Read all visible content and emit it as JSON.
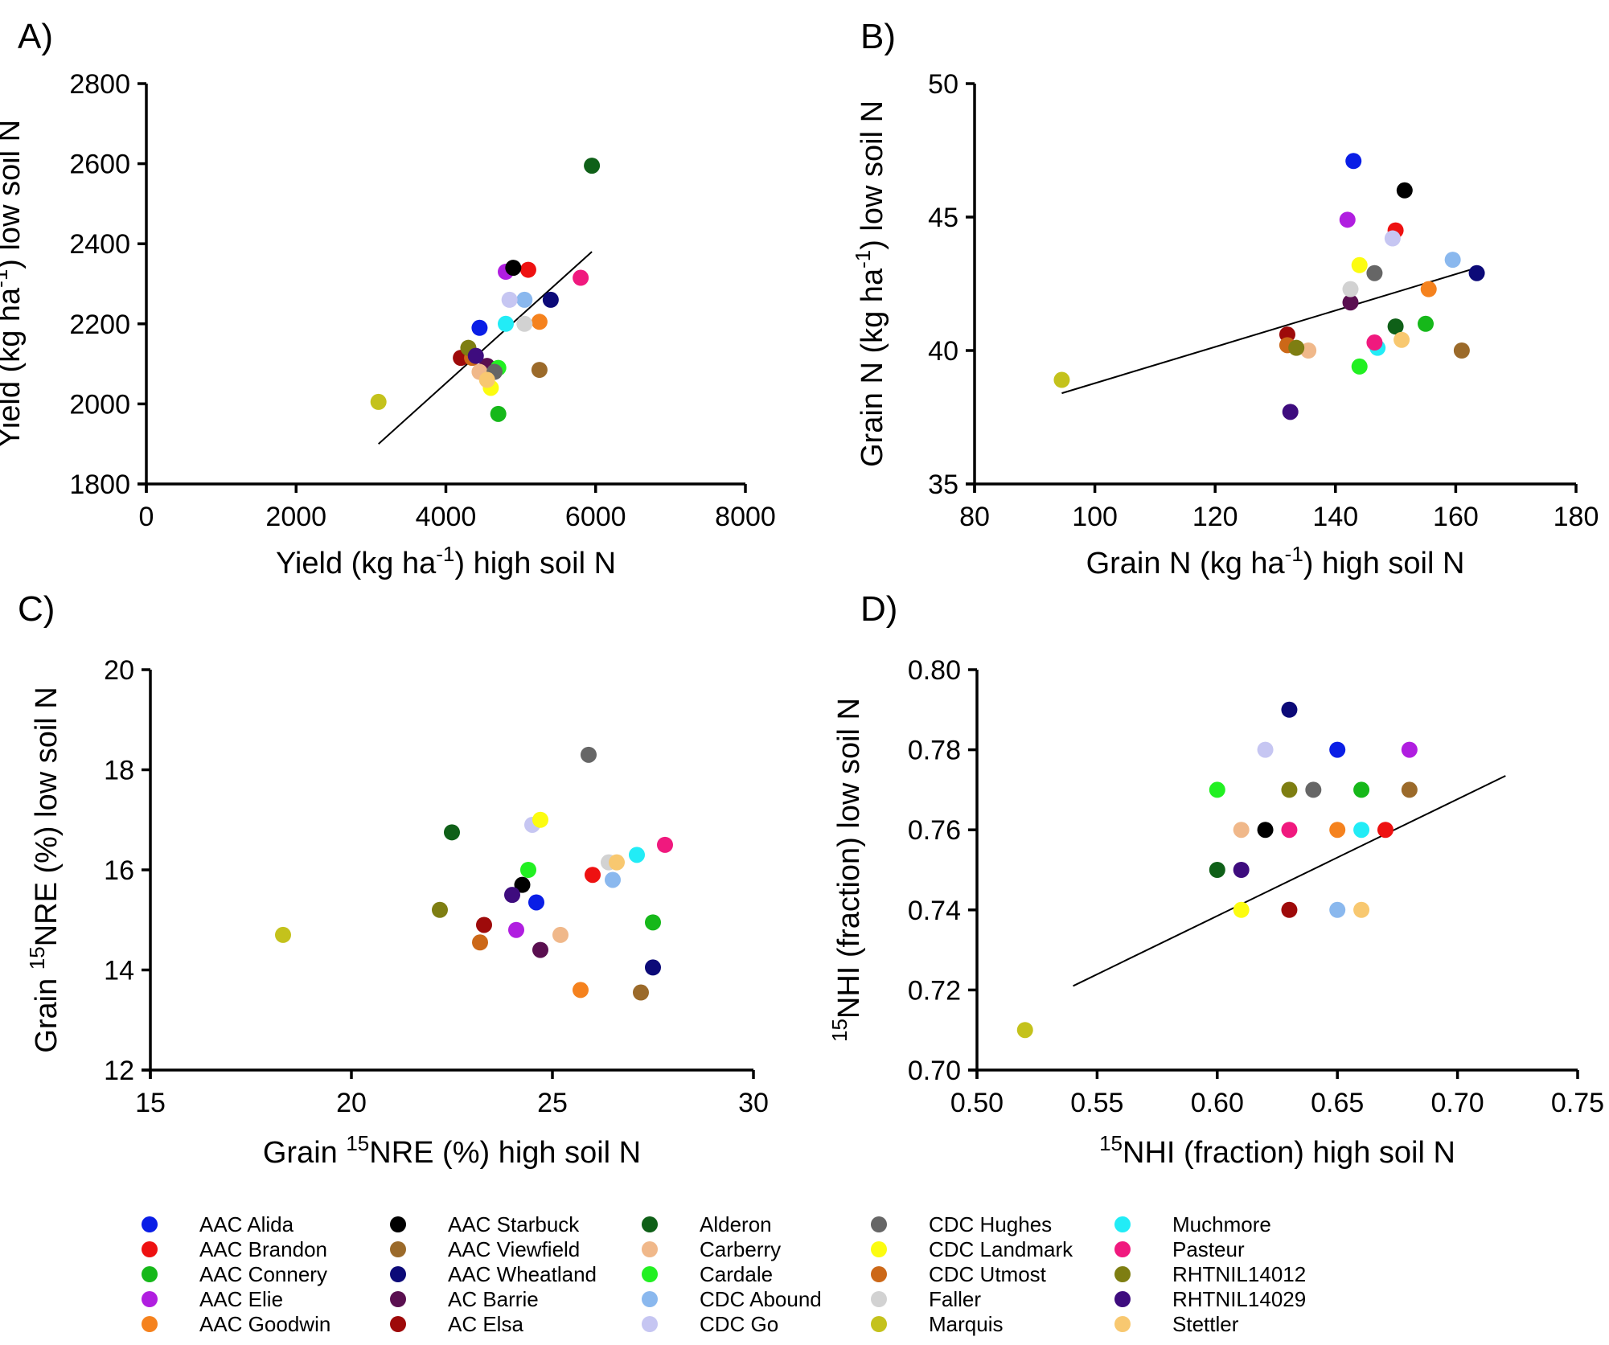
{
  "varieties": [
    {
      "name": "AAC Alida",
      "color": "#0a1ee6"
    },
    {
      "name": "AAC Brandon",
      "color": "#ee1111"
    },
    {
      "name": "AAC Connery",
      "color": "#16b81a"
    },
    {
      "name": "AAC Elie",
      "color": "#b01ee0"
    },
    {
      "name": "AAC Goodwin",
      "color": "#f5821e"
    },
    {
      "name": "AAC Starbuck",
      "color": "#000000"
    },
    {
      "name": "AAC Viewfield",
      "color": "#9b6a2a"
    },
    {
      "name": "AAC Wheatland",
      "color": "#0c0a78"
    },
    {
      "name": "AC Barrie",
      "color": "#5a0f50"
    },
    {
      "name": "AC Elsa",
      "color": "#9e0a0a"
    },
    {
      "name": "Alderon",
      "color": "#0f6018"
    },
    {
      "name": "Carberry",
      "color": "#f0b88a"
    },
    {
      "name": "Cardale",
      "color": "#22f022"
    },
    {
      "name": "CDC Abound",
      "color": "#8ab8ee"
    },
    {
      "name": "CDC Go",
      "color": "#c6c6f2"
    },
    {
      "name": "CDC Hughes",
      "color": "#666666"
    },
    {
      "name": "CDC Landmark",
      "color": "#fcfc10"
    },
    {
      "name": "CDC Utmost",
      "color": "#cc6818"
    },
    {
      "name": "Faller",
      "color": "#d2d2d2"
    },
    {
      "name": "Marquis",
      "color": "#c4c21c"
    },
    {
      "name": "Muchmore",
      "color": "#22ecf6"
    },
    {
      "name": "Pasteur",
      "color": "#f0197e"
    },
    {
      "name": "RHTNIL14012",
      "color": "#7e7e12"
    },
    {
      "name": "RHTNIL14029",
      "color": "#3e0c7e"
    },
    {
      "name": "Stettler",
      "color": "#f8c870"
    }
  ],
  "chart_data": [
    {
      "panel": "A)",
      "type": "scatter",
      "xlabel": {
        "pre": "Yield (kg ha",
        "sup": "-1",
        "post": ") high soil N"
      },
      "ylabel": {
        "pre": "Yield (kg ha",
        "sup": "-1",
        "post": ") low soil N"
      },
      "xlim": [
        0,
        8000
      ],
      "ylim": [
        1800,
        2800
      ],
      "xticks": [
        0,
        2000,
        4000,
        6000,
        8000
      ],
      "yticks": [
        1800,
        2000,
        2200,
        2400,
        2600,
        2800
      ],
      "xtick_labels": [
        "0",
        "2000",
        "4000",
        "6000",
        "8000"
      ],
      "ytick_labels": [
        "1800",
        "2000",
        "2200",
        "2400",
        "2600",
        "2800"
      ],
      "regression": [
        [
          3100,
          1900
        ],
        [
          5950,
          2380
        ]
      ],
      "points": [
        {
          "v": "AAC Alida",
          "x": 4450,
          "y": 2190
        },
        {
          "v": "AAC Brandon",
          "x": 5100,
          "y": 2335
        },
        {
          "v": "AAC Connery",
          "x": 4700,
          "y": 1975
        },
        {
          "v": "AAC Elie",
          "x": 4800,
          "y": 2330
        },
        {
          "v": "AAC Goodwin",
          "x": 5250,
          "y": 2205
        },
        {
          "v": "AAC Starbuck",
          "x": 4900,
          "y": 2340
        },
        {
          "v": "AAC Viewfield",
          "x": 5250,
          "y": 2085
        },
        {
          "v": "AAC Wheatland",
          "x": 5400,
          "y": 2260
        },
        {
          "v": "AC Barrie",
          "x": 4550,
          "y": 2095
        },
        {
          "v": "AC Elsa",
          "x": 4200,
          "y": 2115
        },
        {
          "v": "Alderon",
          "x": 5950,
          "y": 2595
        },
        {
          "v": "Carberry",
          "x": 4450,
          "y": 2080
        },
        {
          "v": "Cardale",
          "x": 4700,
          "y": 2090
        },
        {
          "v": "CDC Abound",
          "x": 5050,
          "y": 2260
        },
        {
          "v": "CDC Go",
          "x": 4850,
          "y": 2260
        },
        {
          "v": "CDC Hughes",
          "x": 4650,
          "y": 2080
        },
        {
          "v": "CDC Landmark",
          "x": 4600,
          "y": 2040
        },
        {
          "v": "CDC Utmost",
          "x": 4350,
          "y": 2115
        },
        {
          "v": "Faller",
          "x": 5050,
          "y": 2200
        },
        {
          "v": "Marquis",
          "x": 3100,
          "y": 2005
        },
        {
          "v": "Muchmore",
          "x": 4800,
          "y": 2200
        },
        {
          "v": "Pasteur",
          "x": 5800,
          "y": 2315
        },
        {
          "v": "RHTNIL14012",
          "x": 4300,
          "y": 2140
        },
        {
          "v": "RHTNIL14029",
          "x": 4400,
          "y": 2120
        },
        {
          "v": "Stettler",
          "x": 4550,
          "y": 2060
        }
      ]
    },
    {
      "panel": "B)",
      "type": "scatter",
      "xlabel": {
        "pre": "Grain N (kg ha",
        "sup": "-1",
        "post": ") high soil N"
      },
      "ylabel": {
        "pre": "Grain N (kg ha",
        "sup": "-1",
        "post": ") low soil N"
      },
      "xlim": [
        80,
        180
      ],
      "ylim": [
        35,
        50
      ],
      "xticks": [
        80,
        100,
        120,
        140,
        160,
        180
      ],
      "yticks": [
        35,
        40,
        45,
        50
      ],
      "xtick_labels": [
        "80",
        "100",
        "120",
        "140",
        "160",
        "180"
      ],
      "ytick_labels": [
        "35",
        "40",
        "45",
        "50"
      ],
      "regression": [
        [
          94.5,
          38.4
        ],
        [
          163.5,
          43.1
        ]
      ],
      "points": [
        {
          "v": "AAC Alida",
          "x": 143,
          "y": 47.1
        },
        {
          "v": "AAC Brandon",
          "x": 150,
          "y": 44.5
        },
        {
          "v": "AAC Connery",
          "x": 155,
          "y": 41.0
        },
        {
          "v": "AAC Elie",
          "x": 142,
          "y": 44.9
        },
        {
          "v": "AAC Goodwin",
          "x": 155.5,
          "y": 42.3
        },
        {
          "v": "AAC Starbuck",
          "x": 151.5,
          "y": 46.0
        },
        {
          "v": "AAC Viewfield",
          "x": 161,
          "y": 40.0
        },
        {
          "v": "AAC Wheatland",
          "x": 163.5,
          "y": 42.9
        },
        {
          "v": "AC Barrie",
          "x": 142.5,
          "y": 41.8
        },
        {
          "v": "AC Elsa",
          "x": 132,
          "y": 40.6
        },
        {
          "v": "Alderon",
          "x": 150,
          "y": 40.9
        },
        {
          "v": "Carberry",
          "x": 135.5,
          "y": 40.0
        },
        {
          "v": "Cardale",
          "x": 144,
          "y": 39.4
        },
        {
          "v": "CDC Abound",
          "x": 159.5,
          "y": 43.4
        },
        {
          "v": "CDC Go",
          "x": 149.5,
          "y": 44.2
        },
        {
          "v": "CDC Hughes",
          "x": 146.5,
          "y": 42.9
        },
        {
          "v": "CDC Landmark",
          "x": 144,
          "y": 43.2
        },
        {
          "v": "CDC Utmost",
          "x": 132,
          "y": 40.2
        },
        {
          "v": "Faller",
          "x": 142.5,
          "y": 42.3
        },
        {
          "v": "Marquis",
          "x": 94.5,
          "y": 38.9
        },
        {
          "v": "Muchmore",
          "x": 147,
          "y": 40.1
        },
        {
          "v": "Pasteur",
          "x": 146.5,
          "y": 40.3
        },
        {
          "v": "RHTNIL14012",
          "x": 133.5,
          "y": 40.1
        },
        {
          "v": "RHTNIL14029",
          "x": 132.5,
          "y": 37.7
        },
        {
          "v": "Stettler",
          "x": 151,
          "y": 40.4
        }
      ]
    },
    {
      "panel": "C)",
      "type": "scatter",
      "xlabel": {
        "pre": "Grain ",
        "presup": "15",
        "pre2": "NRE (%) high soil N"
      },
      "ylabel": {
        "pre": "Grain ",
        "presup": "15",
        "pre2": "NRE (%) low soil N"
      },
      "xlim": [
        15,
        30
      ],
      "ylim": [
        12,
        20
      ],
      "xticks": [
        15,
        20,
        25,
        30
      ],
      "yticks": [
        12,
        14,
        16,
        18,
        20
      ],
      "xtick_labels": [
        "15",
        "20",
        "25",
        "30"
      ],
      "ytick_labels": [
        "12",
        "14",
        "16",
        "18",
        "20"
      ],
      "regression": null,
      "points": [
        {
          "v": "AAC Alida",
          "x": 24.6,
          "y": 15.35
        },
        {
          "v": "AAC Brandon",
          "x": 26.0,
          "y": 15.9
        },
        {
          "v": "AAC Connery",
          "x": 27.5,
          "y": 14.95
        },
        {
          "v": "AAC Elie",
          "x": 24.1,
          "y": 14.8
        },
        {
          "v": "AAC Goodwin",
          "x": 25.7,
          "y": 13.6
        },
        {
          "v": "AAC Starbuck",
          "x": 24.25,
          "y": 15.7
        },
        {
          "v": "AAC Viewfield",
          "x": 27.2,
          "y": 13.55
        },
        {
          "v": "AAC Wheatland",
          "x": 27.5,
          "y": 14.05
        },
        {
          "v": "AC Barrie",
          "x": 24.7,
          "y": 14.4
        },
        {
          "v": "AC Elsa",
          "x": 23.3,
          "y": 14.9
        },
        {
          "v": "Alderon",
          "x": 22.5,
          "y": 16.75
        },
        {
          "v": "Carberry",
          "x": 25.2,
          "y": 14.7
        },
        {
          "v": "Cardale",
          "x": 24.4,
          "y": 16.0
        },
        {
          "v": "CDC Abound",
          "x": 26.5,
          "y": 15.8
        },
        {
          "v": "CDC Go",
          "x": 24.5,
          "y": 16.9
        },
        {
          "v": "CDC Hughes",
          "x": 25.9,
          "y": 18.3
        },
        {
          "v": "CDC Landmark",
          "x": 24.7,
          "y": 17.0
        },
        {
          "v": "CDC Utmost",
          "x": 23.2,
          "y": 14.55
        },
        {
          "v": "Faller",
          "x": 26.4,
          "y": 16.15
        },
        {
          "v": "Marquis",
          "x": 18.3,
          "y": 14.7
        },
        {
          "v": "Muchmore",
          "x": 27.1,
          "y": 16.3
        },
        {
          "v": "Pasteur",
          "x": 27.8,
          "y": 16.5
        },
        {
          "v": "RHTNIL14012",
          "x": 22.2,
          "y": 15.2
        },
        {
          "v": "RHTNIL14029",
          "x": 24.0,
          "y": 15.5
        },
        {
          "v": "Stettler",
          "x": 26.6,
          "y": 16.15
        }
      ]
    },
    {
      "panel": "D)",
      "type": "scatter",
      "xlabel": {
        "pre": "",
        "presup": "15",
        "pre2": "NHI (fraction) high soil N"
      },
      "ylabel": {
        "pre": "",
        "presup": "15",
        "pre2": "NHI (fraction) low soil N"
      },
      "xlim": [
        0.5,
        0.75
      ],
      "ylim": [
        0.7,
        0.8
      ],
      "xticks": [
        0.5,
        0.55,
        0.6,
        0.65,
        0.7,
        0.75
      ],
      "yticks": [
        0.7,
        0.72,
        0.74,
        0.76,
        0.78,
        0.8
      ],
      "xtick_labels": [
        "0.50",
        "0.55",
        "0.60",
        "0.65",
        "0.70",
        "0.75"
      ],
      "ytick_labels": [
        "0.70",
        "0.72",
        "0.74",
        "0.76",
        "0.78",
        "0.80"
      ],
      "regression": [
        [
          0.54,
          0.721
        ],
        [
          0.72,
          0.7735
        ]
      ],
      "points": [
        {
          "v": "AAC Alida",
          "x": 0.65,
          "y": 0.78
        },
        {
          "v": "AAC Brandon",
          "x": 0.67,
          "y": 0.76
        },
        {
          "v": "AAC Connery",
          "x": 0.66,
          "y": 0.77
        },
        {
          "v": "AAC Elie",
          "x": 0.68,
          "y": 0.78
        },
        {
          "v": "AAC Goodwin",
          "x": 0.65,
          "y": 0.76
        },
        {
          "v": "AAC Starbuck",
          "x": 0.62,
          "y": 0.76
        },
        {
          "v": "AAC Viewfield",
          "x": 0.68,
          "y": 0.77
        },
        {
          "v": "AAC Wheatland",
          "x": 0.63,
          "y": 0.79
        },
        {
          "v": "AC Elsa",
          "x": 0.63,
          "y": 0.74
        },
        {
          "v": "Alderon",
          "x": 0.6,
          "y": 0.75
        },
        {
          "v": "Carberry",
          "x": 0.61,
          "y": 0.76
        },
        {
          "v": "Cardale",
          "x": 0.6,
          "y": 0.77
        },
        {
          "v": "CDC Abound",
          "x": 0.65,
          "y": 0.74
        },
        {
          "v": "CDC Go",
          "x": 0.62,
          "y": 0.78
        },
        {
          "v": "CDC Hughes",
          "x": 0.64,
          "y": 0.77
        },
        {
          "v": "CDC Landmark",
          "x": 0.61,
          "y": 0.74
        },
        {
          "v": "Marquis",
          "x": 0.52,
          "y": 0.71
        },
        {
          "v": "Muchmore",
          "x": 0.66,
          "y": 0.76
        },
        {
          "v": "Pasteur",
          "x": 0.63,
          "y": 0.76
        },
        {
          "v": "RHTNIL14012",
          "x": 0.63,
          "y": 0.77
        },
        {
          "v": "RHTNIL14029",
          "x": 0.61,
          "y": 0.75
        },
        {
          "v": "Stettler",
          "x": 0.66,
          "y": 0.74
        }
      ]
    }
  ]
}
